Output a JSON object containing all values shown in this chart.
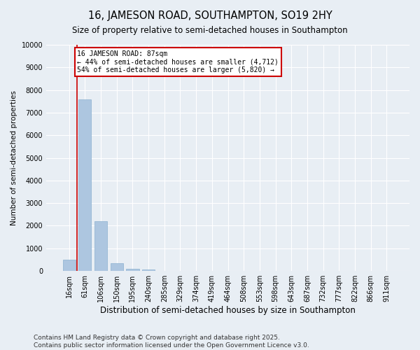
{
  "title": "16, JAMESON ROAD, SOUTHAMPTON, SO19 2HY",
  "subtitle": "Size of property relative to semi-detached houses in Southampton",
  "xlabel": "Distribution of semi-detached houses by size in Southampton",
  "ylabel": "Number of semi-detached properties",
  "categories": [
    "16sqm",
    "61sqm",
    "106sqm",
    "150sqm",
    "195sqm",
    "240sqm",
    "285sqm",
    "329sqm",
    "374sqm",
    "419sqm",
    "464sqm",
    "508sqm",
    "553sqm",
    "598sqm",
    "643sqm",
    "687sqm",
    "732sqm",
    "777sqm",
    "822sqm",
    "866sqm",
    "911sqm"
  ],
  "values": [
    500,
    7600,
    2200,
    350,
    100,
    50,
    0,
    0,
    0,
    0,
    0,
    0,
    0,
    0,
    0,
    0,
    0,
    0,
    0,
    0,
    0
  ],
  "bar_color": "#adc6e0",
  "bar_edge_color": "#8ab0d0",
  "vline_x": 0.5,
  "vline_color": "#cc0000",
  "annotation_text": "16 JAMESON ROAD: 87sqm\n← 44% of semi-detached houses are smaller (4,712)\n54% of semi-detached houses are larger (5,820) →",
  "annotation_box_color": "#ffffff",
  "annotation_border_color": "#cc0000",
  "ylim": [
    0,
    10000
  ],
  "yticks": [
    0,
    1000,
    2000,
    3000,
    4000,
    5000,
    6000,
    7000,
    8000,
    9000,
    10000
  ],
  "background_color": "#e8eef4",
  "grid_color": "#ffffff",
  "footer": "Contains HM Land Registry data © Crown copyright and database right 2025.\nContains public sector information licensed under the Open Government Licence v3.0.",
  "title_fontsize": 10.5,
  "subtitle_fontsize": 8.5,
  "xlabel_fontsize": 8.5,
  "ylabel_fontsize": 7.5,
  "tick_fontsize": 7,
  "footer_fontsize": 6.5,
  "annotation_fontsize": 7
}
